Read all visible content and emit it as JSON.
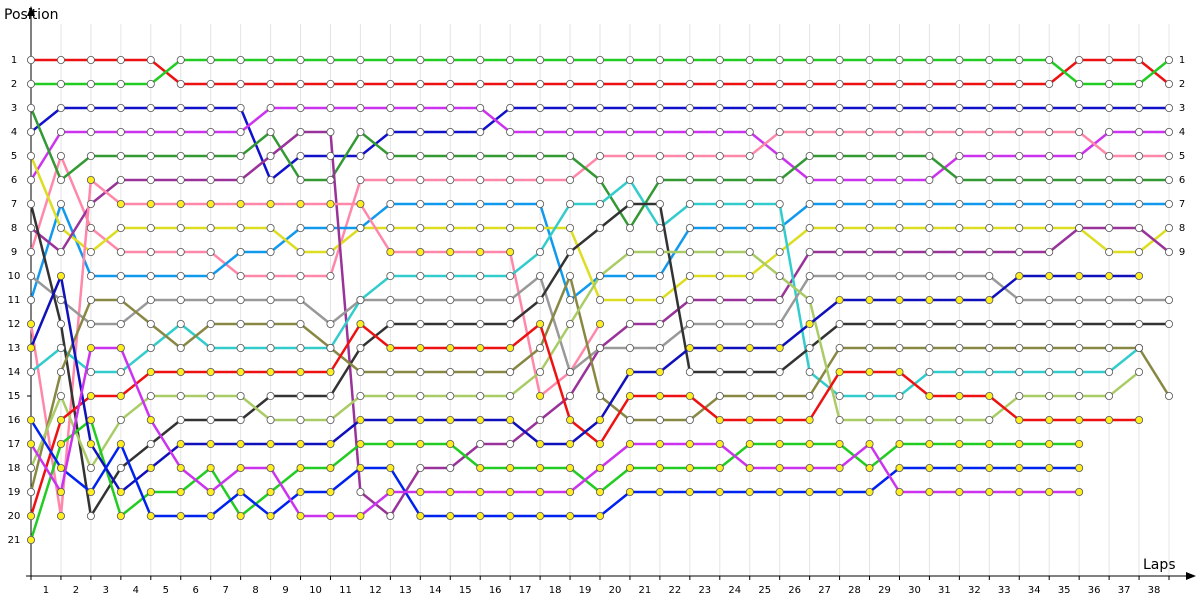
{
  "chart_data": {
    "type": "lap-chart",
    "y_label": "Position",
    "x_label": "Laps",
    "x": [
      0,
      1,
      2,
      3,
      4,
      5,
      6,
      7,
      8,
      9,
      10,
      11,
      12,
      13,
      14,
      15,
      16,
      17,
      18,
      19,
      20,
      21,
      22,
      23,
      24,
      25,
      26,
      27,
      28,
      29,
      30,
      31,
      32,
      33,
      34,
      35,
      36,
      37,
      38
    ],
    "xlim": [
      0,
      38
    ],
    "xticks": [
      {
        "value": 0.5,
        "label": "1"
      },
      {
        "value": 1.5,
        "label": "2"
      },
      {
        "value": 2.5,
        "label": "3"
      },
      {
        "value": 3.5,
        "label": "4"
      },
      {
        "value": 4.5,
        "label": "5"
      },
      {
        "value": 5.5,
        "label": "6"
      },
      {
        "value": 6.5,
        "label": "7"
      },
      {
        "value": 7.5,
        "label": "8"
      },
      {
        "value": 8.5,
        "label": "9"
      },
      {
        "value": 9.5,
        "label": "10"
      },
      {
        "value": 10.5,
        "label": "11"
      },
      {
        "value": 11.5,
        "label": "12"
      },
      {
        "value": 12.5,
        "label": "13"
      },
      {
        "value": 13.5,
        "label": "14"
      },
      {
        "value": 14.5,
        "label": "15"
      },
      {
        "value": 15.5,
        "label": "16"
      },
      {
        "value": 16.5,
        "label": "17"
      },
      {
        "value": 17.5,
        "label": "18"
      },
      {
        "value": 18.5,
        "label": "19"
      },
      {
        "value": 19.5,
        "label": "20"
      },
      {
        "value": 20.5,
        "label": "21"
      },
      {
        "value": 21.5,
        "label": "22"
      },
      {
        "value": 22.5,
        "label": "23"
      },
      {
        "value": 23.5,
        "label": "24"
      },
      {
        "value": 24.5,
        "label": "25"
      },
      {
        "value": 25.5,
        "label": "26"
      },
      {
        "value": 26.5,
        "label": "27"
      },
      {
        "value": 27.5,
        "label": "28"
      },
      {
        "value": 28.5,
        "label": "29"
      },
      {
        "value": 29.5,
        "label": "30"
      },
      {
        "value": 30.5,
        "label": "31"
      },
      {
        "value": 31.5,
        "label": "32"
      },
      {
        "value": 32.5,
        "label": "33"
      },
      {
        "value": 33.5,
        "label": "34"
      },
      {
        "value": 34.5,
        "label": "35"
      },
      {
        "value": 35.5,
        "label": "36"
      },
      {
        "value": 36.5,
        "label": "37"
      },
      {
        "value": 37.5,
        "label": "38"
      }
    ],
    "ylim": [
      0,
      22.5
    ],
    "y_inverted": true,
    "yticks": [
      1,
      2,
      3,
      4,
      5,
      6,
      7,
      8,
      9,
      10,
      11,
      12,
      13,
      14,
      15,
      16,
      17,
      18,
      19,
      20,
      21
    ],
    "y2lim": [
      0,
      22.5
    ],
    "y2ticks": [
      1,
      2,
      3,
      4,
      5,
      6,
      7,
      8,
      9
    ],
    "grid": true,
    "series": [
      {
        "color": "#ee1111",
        "marker_color": "#ffffff",
        "values": [
          1,
          1,
          1,
          1,
          1,
          2,
          2,
          2,
          2,
          2,
          2,
          2,
          2,
          2,
          2,
          2,
          2,
          2,
          2,
          2,
          2,
          2,
          2,
          2,
          2,
          2,
          2,
          2,
          2,
          2,
          2,
          2,
          2,
          2,
          2,
          1,
          1,
          1,
          2
        ]
      },
      {
        "color": "#22cc22",
        "marker_color": "#ffffff",
        "values": [
          2,
          2,
          2,
          2,
          2,
          1,
          1,
          1,
          1,
          1,
          1,
          1,
          1,
          1,
          1,
          1,
          1,
          1,
          1,
          1,
          1,
          1,
          1,
          1,
          1,
          1,
          1,
          1,
          1,
          1,
          1,
          1,
          1,
          1,
          1,
          2,
          2,
          2,
          1
        ]
      },
      {
        "color": "#1111cc",
        "marker_color": "#ffffff",
        "values": [
          4,
          3,
          3,
          3,
          3,
          3,
          3,
          3,
          6,
          5,
          5,
          5,
          4,
          4,
          4,
          4,
          3,
          3,
          3,
          3,
          3,
          3,
          3,
          3,
          3,
          3,
          3,
          3,
          3,
          3,
          3,
          3,
          3,
          3,
          3,
          3,
          3,
          3,
          3
        ]
      },
      {
        "color": "#cc33ee",
        "marker_color": "#ffffff",
        "values": [
          6,
          4,
          4,
          4,
          4,
          4,
          4,
          4,
          3,
          3,
          3,
          3,
          3,
          3,
          3,
          3,
          4,
          4,
          4,
          4,
          4,
          4,
          4,
          4,
          4,
          5,
          6,
          6,
          6,
          6,
          6,
          5,
          5,
          5,
          5,
          5,
          4,
          4,
          4
        ]
      },
      {
        "color": "#ff88aa",
        "marker_color": "#ffffff",
        "values": [
          9,
          5,
          8,
          9,
          9,
          9,
          9,
          10,
          10,
          10,
          10,
          6,
          6,
          6,
          6,
          6,
          6,
          6,
          6,
          5,
          5,
          5,
          5,
          5,
          5,
          4,
          4,
          4,
          4,
          4,
          4,
          4,
          4,
          4,
          4,
          4,
          5,
          5,
          5
        ]
      },
      {
        "color": "#339933",
        "marker_color": "#ffffff",
        "values": [
          3,
          6,
          5,
          5,
          5,
          5,
          5,
          5,
          4,
          6,
          6,
          4,
          5,
          5,
          5,
          5,
          5,
          5,
          5,
          6,
          8,
          6,
          6,
          6,
          6,
          6,
          5,
          5,
          5,
          5,
          5,
          6,
          6,
          6,
          6,
          6,
          6,
          6,
          6
        ]
      },
      {
        "color": "#1199ee",
        "marker_color": "#ffffff",
        "values": [
          11,
          7,
          10,
          10,
          10,
          10,
          10,
          9,
          9,
          8,
          8,
          8,
          7,
          7,
          7,
          7,
          7,
          7,
          11,
          10,
          10,
          10,
          8,
          8,
          8,
          8,
          7,
          7,
          7,
          7,
          7,
          7,
          7,
          7,
          7,
          7,
          7,
          7,
          7
        ]
      },
      {
        "color": "#dddd22",
        "marker_color": "#ffffff",
        "values": [
          5,
          8,
          9,
          8,
          8,
          8,
          8,
          8,
          8,
          9,
          9,
          8,
          8,
          8,
          8,
          8,
          8,
          8,
          8,
          11,
          11,
          11,
          10,
          10,
          10,
          9,
          8,
          8,
          8,
          8,
          8,
          8,
          8,
          8,
          8,
          8,
          9,
          9,
          8
        ]
      },
      {
        "color": "#993399",
        "marker_color": "#ffffff",
        "values": [
          8,
          9,
          7,
          6,
          6,
          6,
          6,
          6,
          5,
          4,
          4,
          19,
          20,
          18,
          18,
          17,
          17,
          16,
          15,
          13,
          12,
          12,
          11,
          11,
          11,
          11,
          9,
          9,
          9,
          9,
          9,
          9,
          9,
          9,
          9,
          8,
          8,
          8,
          9
        ]
      },
      {
        "color": "#ff88aa",
        "marker_color": "#ffee22",
        "values": [
          12,
          20,
          6,
          7,
          7,
          7,
          7,
          7,
          7,
          7,
          7,
          7,
          9,
          9,
          9,
          9,
          9,
          15,
          14,
          12,
          null,
          null,
          null,
          null,
          null,
          null,
          null,
          null,
          null,
          null,
          null,
          null,
          null,
          null,
          null,
          null,
          null,
          null,
          null
        ]
      },
      {
        "color": "#33cccc",
        "marker_color": "#ffffff",
        "values": [
          14,
          13,
          14,
          14,
          13,
          12,
          13,
          13,
          13,
          13,
          13,
          11,
          10,
          10,
          10,
          10,
          10,
          9,
          7,
          7,
          6,
          8,
          7,
          7,
          7,
          7,
          14,
          15,
          15,
          15,
          14,
          14,
          14,
          14,
          14,
          14,
          14,
          13,
          null
        ]
      },
      {
        "color": "#999999",
        "marker_color": "#ffffff",
        "values": [
          10,
          11,
          12,
          12,
          11,
          11,
          11,
          11,
          11,
          11,
          12,
          11,
          11,
          11,
          11,
          11,
          11,
          10,
          14,
          13,
          13,
          13,
          12,
          12,
          12,
          12,
          10,
          10,
          10,
          10,
          10,
          10,
          10,
          11,
          11,
          11,
          11,
          11,
          11
        ]
      },
      {
        "color": "#333333",
        "marker_color": "#ffffff",
        "values": [
          7,
          12,
          20,
          18,
          17,
          16,
          16,
          16,
          15,
          15,
          15,
          13,
          12,
          12,
          12,
          12,
          12,
          11,
          9,
          8,
          7,
          7,
          14,
          14,
          14,
          14,
          13,
          12,
          12,
          12,
          12,
          12,
          12,
          12,
          12,
          12,
          12,
          12,
          12
        ]
      },
      {
        "color": "#888844",
        "marker_color": "#ffffff",
        "values": [
          19,
          14,
          11,
          11,
          12,
          13,
          12,
          12,
          12,
          12,
          13,
          14,
          14,
          14,
          14,
          14,
          14,
          13,
          10,
          15,
          16,
          16,
          16,
          15,
          15,
          15,
          15,
          13,
          13,
          13,
          13,
          13,
          13,
          13,
          13,
          13,
          13,
          13,
          15
        ]
      },
      {
        "color": "#aacc66",
        "marker_color": "#ffffff",
        "values": [
          18,
          15,
          18,
          16,
          15,
          15,
          15,
          15,
          16,
          16,
          16,
          15,
          15,
          15,
          15,
          15,
          15,
          14,
          12,
          10,
          9,
          9,
          9,
          9,
          9,
          10,
          11,
          16,
          16,
          16,
          16,
          16,
          16,
          15,
          15,
          15,
          15,
          14,
          null
        ]
      },
      {
        "color": "#ee1111",
        "marker_color": "#ffee22",
        "values": [
          20,
          16,
          15,
          15,
          14,
          14,
          14,
          14,
          14,
          14,
          14,
          12,
          13,
          13,
          13,
          13,
          13,
          12,
          16,
          17,
          15,
          15,
          15,
          16,
          16,
          16,
          16,
          14,
          14,
          14,
          15,
          15,
          15,
          16,
          16,
          16,
          16,
          16,
          null
        ]
      },
      {
        "color": "#22cc22",
        "marker_color": "#ffee22",
        "values": [
          21,
          17,
          16,
          20,
          19,
          19,
          18,
          20,
          19,
          18,
          18,
          17,
          17,
          17,
          17,
          18,
          18,
          18,
          18,
          19,
          18,
          18,
          18,
          18,
          17,
          17,
          17,
          17,
          18,
          17,
          17,
          17,
          17,
          17,
          17,
          17,
          null,
          null,
          null
        ]
      },
      {
        "color": "#1111bb",
        "marker_color": "#ffee22",
        "values": [
          13,
          10,
          17,
          19,
          18,
          17,
          17,
          17,
          17,
          17,
          17,
          16,
          16,
          16,
          16,
          16,
          16,
          17,
          17,
          16,
          14,
          14,
          13,
          13,
          13,
          13,
          12,
          11,
          11,
          11,
          11,
          11,
          11,
          10,
          10,
          10,
          10,
          10,
          null
        ]
      },
      {
        "color": "#0022ee",
        "marker_color": "#ffee22",
        "values": [
          16,
          18,
          19,
          17,
          20,
          20,
          20,
          19,
          20,
          19,
          19,
          18,
          18,
          20,
          20,
          20,
          20,
          20,
          20,
          20,
          19,
          19,
          19,
          19,
          19,
          19,
          19,
          19,
          19,
          18,
          18,
          18,
          18,
          18,
          18,
          18,
          null,
          null,
          null
        ]
      },
      {
        "color": "#cc33ee",
        "marker_color": "#ffee22",
        "values": [
          17,
          19,
          13,
          13,
          16,
          18,
          19,
          18,
          18,
          20,
          20,
          20,
          19,
          19,
          19,
          19,
          19,
          19,
          19,
          18,
          17,
          17,
          17,
          17,
          18,
          18,
          18,
          18,
          17,
          19,
          19,
          19,
          19,
          19,
          19,
          19,
          null,
          null,
          null
        ]
      }
    ]
  }
}
